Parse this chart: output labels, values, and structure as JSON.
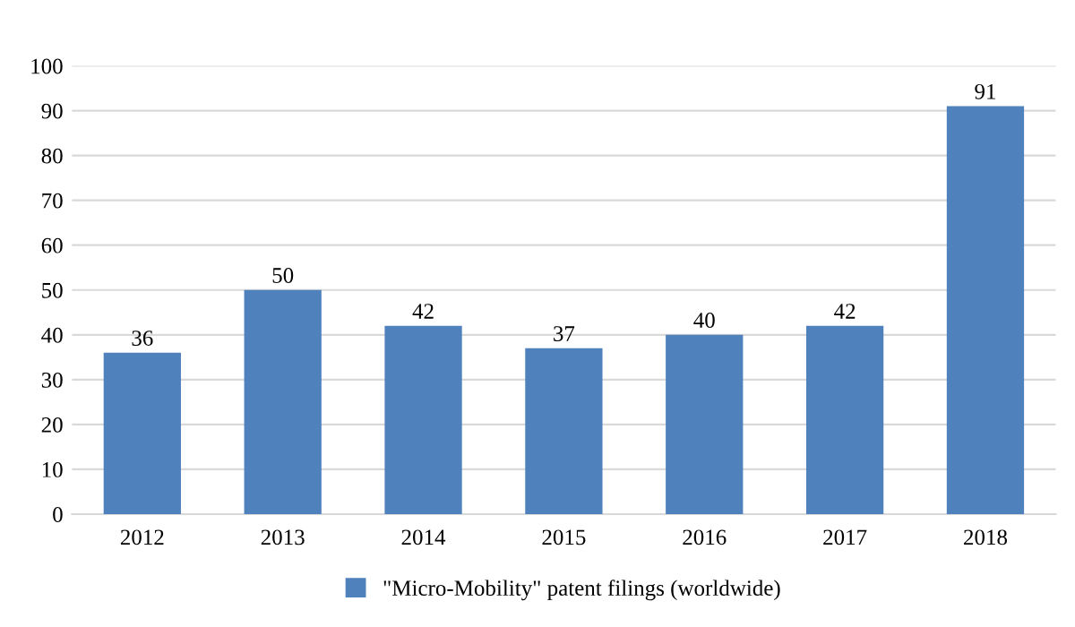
{
  "chart_data": {
    "type": "bar",
    "categories": [
      "2012",
      "2013",
      "2014",
      "2015",
      "2016",
      "2017",
      "2018"
    ],
    "series": [
      {
        "name": "\"Micro-Mobility\" patent filings (worldwide)",
        "color": "#4f81bd",
        "values": [
          36,
          50,
          42,
          37,
          40,
          42,
          91
        ]
      }
    ],
    "ylim": [
      0,
      100
    ],
    "yticks": [
      0,
      10,
      20,
      30,
      40,
      50,
      60,
      70,
      80,
      90,
      100
    ],
    "grid": "y",
    "legend": "bottom",
    "data_labels": true
  }
}
